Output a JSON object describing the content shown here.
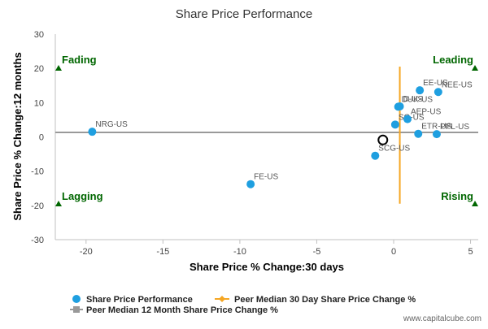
{
  "chart_data": {
    "type": "scatter",
    "title": "Share Price Performance",
    "xlabel": "Share Price % Change:30 days",
    "ylabel": "Share Price % Change:12 months",
    "xlim": [
      -22,
      5.5
    ],
    "ylim": [
      -30,
      30
    ],
    "x_ticks": [
      "-20",
      "-15",
      "-10",
      "-5",
      "0",
      "5"
    ],
    "y_ticks": [
      "30",
      "20",
      "10",
      "0",
      "-10",
      "-20",
      "-30"
    ],
    "grid": false,
    "series": [
      {
        "name": "Share Price Performance",
        "color": "#1f9fe0",
        "points": [
          {
            "label": "NRG-US",
            "x": -19.6,
            "y": 1.5
          },
          {
            "label": "FE-US",
            "x": -9.3,
            "y": -13.8
          },
          {
            "label": "SCG-US",
            "x": -1.2,
            "y": -5.5
          },
          {
            "label": "SO-US",
            "x": 0.1,
            "y": 3.6
          },
          {
            "label": "DUK-US",
            "x": 0.3,
            "y": 8.8
          },
          {
            "label": "AEP-US",
            "x": 0.9,
            "y": 5.2
          },
          {
            "label": "D-US",
            "x": 0.4,
            "y": 8.9
          },
          {
            "label": "EE-US",
            "x": 1.7,
            "y": 13.6
          },
          {
            "label": "NEE-US",
            "x": 2.9,
            "y": 13.1
          },
          {
            "label": "ETR-US",
            "x": 1.6,
            "y": 0.9
          },
          {
            "label": "PPL-US",
            "x": 2.8,
            "y": 0.8
          }
        ]
      },
      {
        "name": "Peer Median 30 Day Share Price Change %",
        "color": "#f5a623",
        "x": 0.4
      },
      {
        "name": "Peer Median 12 Month Share Price Change %",
        "color": "#999999",
        "y": 1.3
      }
    ],
    "highlight_point": {
      "x": -0.7,
      "y": -0.9
    },
    "quadrants": {
      "top_left": "Fading",
      "top_right": "Leading",
      "bottom_left": "Lagging",
      "bottom_right": "Rising",
      "color": "#006600"
    }
  },
  "footer": {
    "source": "www.capitalcube.com"
  }
}
